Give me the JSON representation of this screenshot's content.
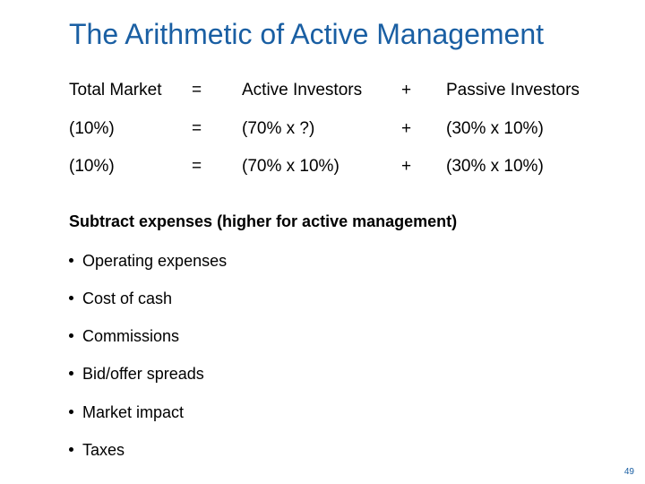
{
  "title": "The Arithmetic of Active Management",
  "rows": [
    {
      "c1": "Total Market",
      "c2": "=",
      "c3": "Active Investors",
      "c4": "+",
      "c5": "Passive Investors"
    },
    {
      "c1": "(10%)",
      "c2": "=",
      "c3": "(70% x ?)",
      "c4": "+",
      "c5": "(30% x 10%)"
    },
    {
      "c1": "(10%)",
      "c2": "=",
      "c3": "(70% x 10%)",
      "c4": "+",
      "c5": "(30% x 10%)"
    }
  ],
  "subheading": "Subtract expenses (higher for active management)",
  "bullets": [
    "Operating expenses",
    "Cost of cash",
    "Commissions",
    "Bid/offer spreads",
    "Market impact",
    "Taxes"
  ],
  "page_number": "49",
  "colors": {
    "title": "#1a5fa3",
    "text": "#000000",
    "page_number": "#1a5fa3"
  }
}
